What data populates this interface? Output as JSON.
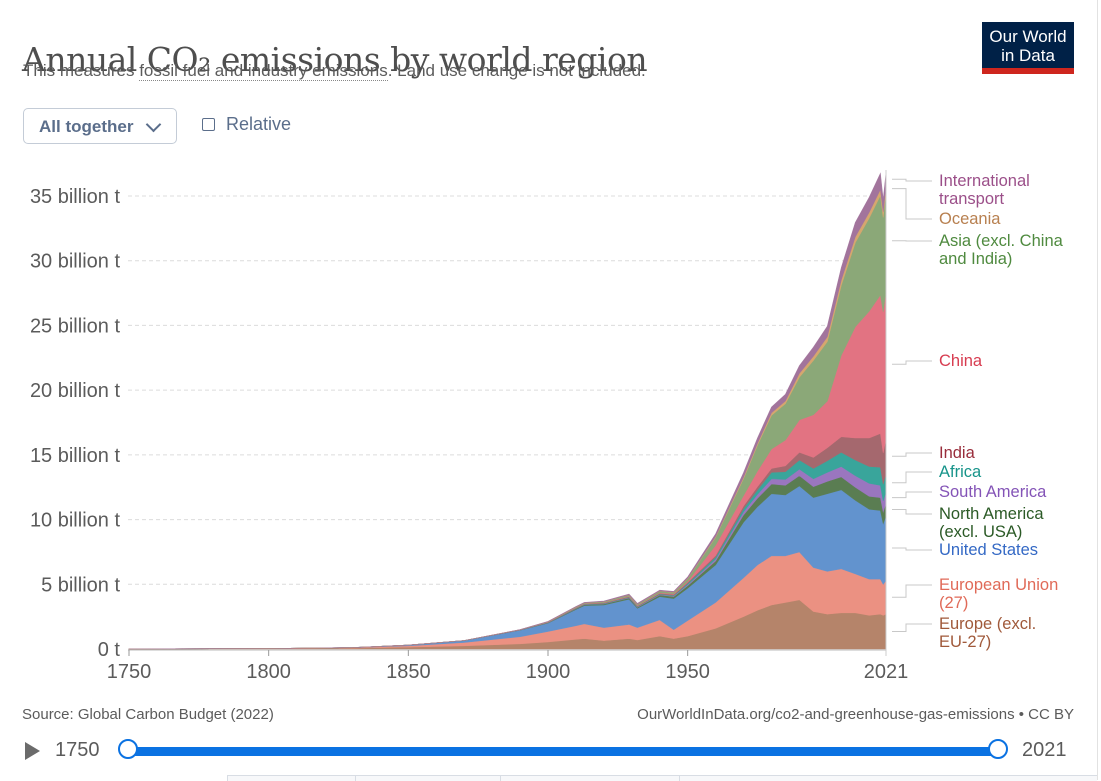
{
  "header": {
    "title": "Annual CO₂ emissions by world region",
    "subtitle_prefix": "This measures ",
    "subtitle_link": "fossil fuel and industry emissions",
    "subtitle_suffix": ". Land use change is not included.",
    "logo_line1": "Our World",
    "logo_line2": "in Data"
  },
  "controls": {
    "stack_mode": "All together",
    "relative_label": "Relative",
    "relative_checked": false
  },
  "footer": {
    "source": "Source: Global Carbon Budget (2022)",
    "url": "OurWorldInData.org/co2-and-greenhouse-gas-emissions • CC BY"
  },
  "timeline": {
    "start": "1750",
    "end": "2021",
    "play_icon": "play-icon"
  },
  "chart_data": {
    "type": "area",
    "stacked": true,
    "title": "Annual CO₂ emissions by world region",
    "ylabel": "",
    "xlabel": "",
    "xlim": [
      1750,
      2021
    ],
    "ylim": [
      0,
      35
    ],
    "unit": "billion t",
    "grid": "horizontal-dashed",
    "legend_placement": "right-inline",
    "x_ticks": [
      "1750",
      "1800",
      "1850",
      "1900",
      "1950",
      "2021"
    ],
    "x_tick_values": [
      1750,
      1800,
      1850,
      1900,
      1950,
      2021
    ],
    "y_ticks": [
      "0 t",
      "5 billion t",
      "10 billion t",
      "15 billion t",
      "20 billion t",
      "25 billion t",
      "30 billion t",
      "35 billion t"
    ],
    "y_tick_values": [
      0,
      5,
      10,
      15,
      20,
      25,
      30,
      35
    ],
    "x": [
      1750,
      1800,
      1830,
      1850,
      1870,
      1890,
      1900,
      1910,
      1913,
      1920,
      1929,
      1932,
      1940,
      1945,
      1950,
      1960,
      1970,
      1975,
      1980,
      1985,
      1990,
      1995,
      2000,
      2005,
      2010,
      2015,
      2019,
      2020,
      2021
    ],
    "series": [
      {
        "name": "Europe (excl. EU-27)",
        "color": "#b5846a",
        "values": [
          0.01,
          0.03,
          0.07,
          0.15,
          0.25,
          0.4,
          0.55,
          0.75,
          0.8,
          0.65,
          0.8,
          0.7,
          1.0,
          0.8,
          1.0,
          1.6,
          2.5,
          3.0,
          3.4,
          3.6,
          3.8,
          2.9,
          2.7,
          2.8,
          2.8,
          2.6,
          2.7,
          2.6,
          2.7
        ]
      },
      {
        "name": "European Union (27)",
        "color": "#eb9182",
        "values": [
          0.0,
          0.01,
          0.03,
          0.1,
          0.25,
          0.55,
          0.8,
          1.05,
          1.15,
          1.0,
          1.1,
          0.95,
          1.25,
          0.7,
          1.2,
          2.0,
          3.0,
          3.5,
          3.8,
          3.6,
          3.7,
          3.4,
          3.3,
          3.4,
          3.0,
          2.8,
          2.7,
          2.4,
          2.6
        ]
      },
      {
        "name": "United States",
        "color": "#6293ce",
        "values": [
          0.0,
          0.0,
          0.01,
          0.05,
          0.15,
          0.5,
          0.65,
          1.25,
          1.4,
          1.75,
          1.95,
          1.5,
          1.8,
          2.4,
          2.5,
          2.9,
          4.3,
          4.5,
          4.8,
          4.7,
          5.1,
          5.4,
          6.0,
          6.1,
          5.7,
          5.4,
          5.3,
          4.7,
          5.0
        ]
      },
      {
        "name": "North America (excl. USA)",
        "color": "#5a7d52",
        "values": [
          0.0,
          0.0,
          0.0,
          0.0,
          0.01,
          0.02,
          0.03,
          0.06,
          0.07,
          0.08,
          0.1,
          0.08,
          0.12,
          0.15,
          0.2,
          0.3,
          0.55,
          0.65,
          0.75,
          0.75,
          0.8,
          0.85,
          0.95,
          1.0,
          1.0,
          1.0,
          1.0,
          0.9,
          0.95
        ]
      },
      {
        "name": "South America",
        "color": "#9a76bf",
        "values": [
          0.0,
          0.0,
          0.0,
          0.0,
          0.0,
          0.0,
          0.01,
          0.02,
          0.02,
          0.02,
          0.03,
          0.03,
          0.04,
          0.05,
          0.08,
          0.15,
          0.25,
          0.3,
          0.4,
          0.45,
          0.5,
          0.6,
          0.7,
          0.8,
          0.9,
          1.0,
          0.95,
          0.85,
          0.9
        ]
      },
      {
        "name": "Africa",
        "color": "#39a59b",
        "values": [
          0.0,
          0.0,
          0.0,
          0.0,
          0.0,
          0.0,
          0.01,
          0.02,
          0.02,
          0.03,
          0.03,
          0.03,
          0.04,
          0.05,
          0.1,
          0.15,
          0.25,
          0.35,
          0.5,
          0.6,
          0.7,
          0.8,
          0.9,
          1.1,
          1.2,
          1.3,
          1.4,
          1.3,
          1.4
        ]
      },
      {
        "name": "India",
        "color": "#a5686e",
        "values": [
          0.0,
          0.0,
          0.0,
          0.0,
          0.0,
          0.01,
          0.02,
          0.03,
          0.03,
          0.04,
          0.04,
          0.04,
          0.05,
          0.06,
          0.07,
          0.12,
          0.2,
          0.25,
          0.3,
          0.45,
          0.6,
          0.85,
          1.0,
          1.2,
          1.7,
          2.2,
          2.6,
          2.4,
          2.7
        ]
      },
      {
        "name": "China",
        "color": "#e27382",
        "values": [
          0.0,
          0.0,
          0.0,
          0.0,
          0.0,
          0.0,
          0.01,
          0.02,
          0.02,
          0.03,
          0.04,
          0.04,
          0.05,
          0.06,
          0.08,
          0.8,
          0.8,
          1.2,
          1.5,
          2.0,
          2.5,
          3.3,
          3.6,
          6.3,
          8.6,
          9.8,
          10.7,
          10.9,
          11.5
        ]
      },
      {
        "name": "Asia (excl. China and India)",
        "color": "#8ba878",
        "values": [
          0.0,
          0.0,
          0.0,
          0.0,
          0.0,
          0.01,
          0.02,
          0.04,
          0.05,
          0.06,
          0.08,
          0.08,
          0.12,
          0.1,
          0.2,
          0.6,
          1.3,
          2.0,
          2.6,
          2.8,
          3.3,
          4.2,
          4.6,
          5.4,
          6.5,
          7.2,
          7.7,
          7.3,
          7.6
        ]
      },
      {
        "name": "Oceania",
        "color": "#d6a66e",
        "values": [
          0.0,
          0.0,
          0.0,
          0.0,
          0.0,
          0.0,
          0.01,
          0.01,
          0.01,
          0.01,
          0.02,
          0.02,
          0.02,
          0.03,
          0.04,
          0.07,
          0.12,
          0.15,
          0.2,
          0.22,
          0.3,
          0.32,
          0.38,
          0.42,
          0.45,
          0.45,
          0.45,
          0.43,
          0.44
        ]
      },
      {
        "name": "International transport",
        "color": "#a2749c",
        "values": [
          0.0,
          0.0,
          0.0,
          0.0,
          0.0,
          0.01,
          0.02,
          0.03,
          0.03,
          0.04,
          0.05,
          0.05,
          0.05,
          0.05,
          0.1,
          0.2,
          0.35,
          0.4,
          0.45,
          0.5,
          0.6,
          0.7,
          0.8,
          0.95,
          1.1,
          1.15,
          1.25,
          0.95,
          1.0
        ]
      }
    ],
    "legend": [
      {
        "label_lines": [
          "International",
          "transport"
        ],
        "series": "International transport",
        "text_color": "#9b4f89"
      },
      {
        "label_lines": [
          "Oceania"
        ],
        "series": "Oceania",
        "text_color": "#b88050"
      },
      {
        "label_lines": [
          "Asia (excl. China",
          "and India)"
        ],
        "series": "Asia (excl. China and India)",
        "text_color": "#4f8a3f"
      },
      {
        "label_lines": [
          "China"
        ],
        "series": "China",
        "text_color": "#d73c50"
      },
      {
        "label_lines": [
          "India"
        ],
        "series": "India",
        "text_color": "#992d3b"
      },
      {
        "label_lines": [
          "Africa"
        ],
        "series": "Africa",
        "text_color": "#17948a"
      },
      {
        "label_lines": [
          "South America"
        ],
        "series": "South America",
        "text_color": "#8454b7"
      },
      {
        "label_lines": [
          "North America",
          "(excl. USA)"
        ],
        "series": "North America (excl. USA)",
        "text_color": "#2b5a26"
      },
      {
        "label_lines": [
          "United States"
        ],
        "series": "United States",
        "text_color": "#3469c5"
      },
      {
        "label_lines": [
          "European Union",
          "(27)"
        ],
        "series": "European Union (27)",
        "text_color": "#e06a58"
      },
      {
        "label_lines": [
          "Europe (excl.",
          "EU-27)"
        ],
        "series": "Europe (excl. EU-27)",
        "text_color": "#a0593a"
      }
    ]
  }
}
